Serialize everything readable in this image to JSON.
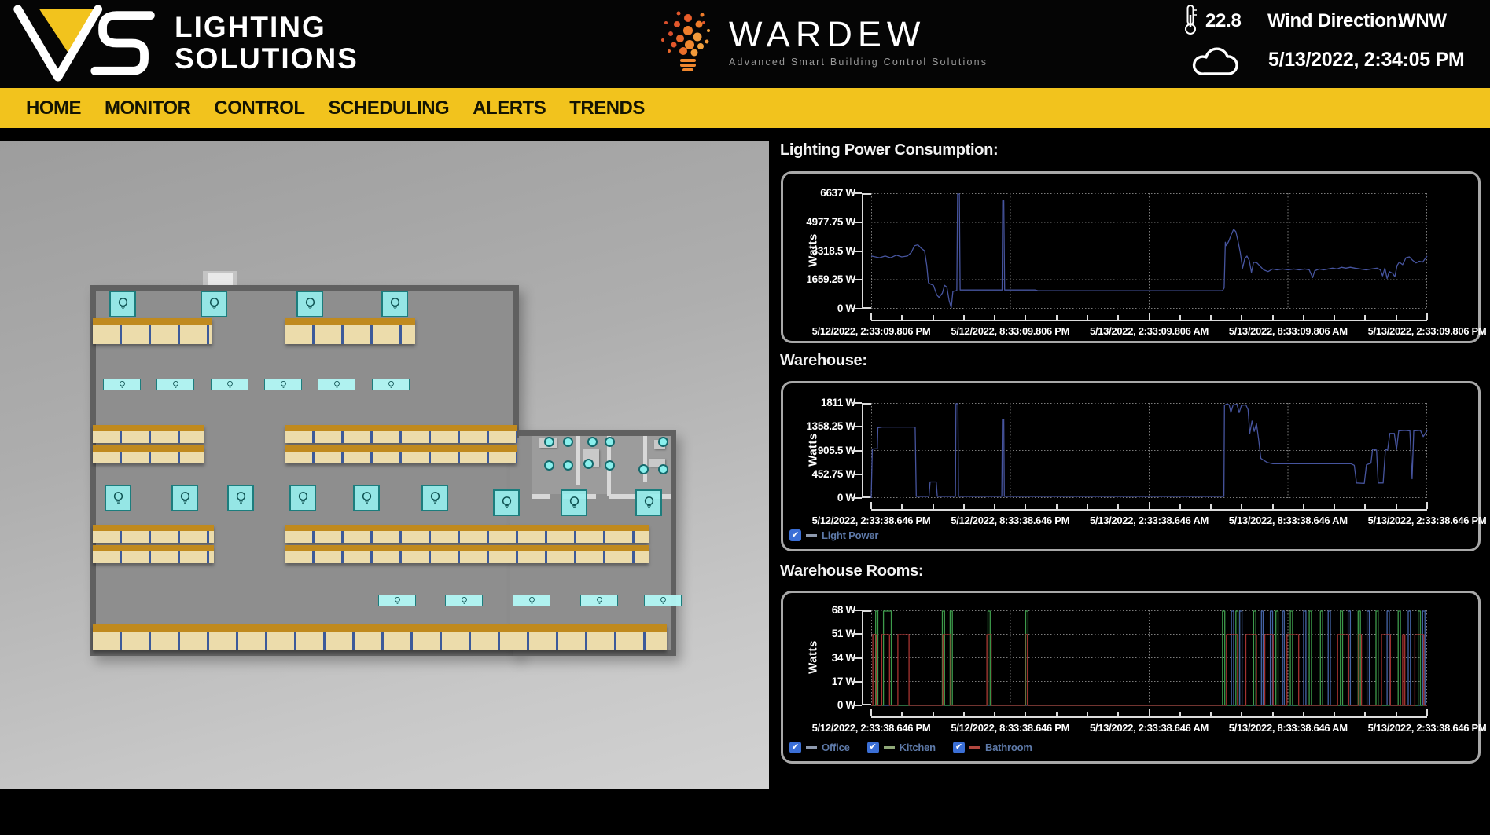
{
  "header": {
    "logo": {
      "line1": "LIGHTING",
      "line2": "SOLUTIONS"
    },
    "brand": {
      "name": "WARDEW",
      "tagline": "Advanced Smart Building Control Solutions"
    },
    "weather": {
      "temperature": "22.8",
      "wind_label": "Wind Direction:",
      "wind_value": "WNW",
      "datetime": "5/13/2022, 2:34:05 PM"
    }
  },
  "nav": {
    "items": [
      "HOME",
      "MONITOR",
      "CONTROL",
      "SCHEDULING",
      "ALERTS",
      "TRENDS"
    ]
  },
  "colors": {
    "nav_bg": "#f2c31d",
    "line_blue": "#46549e",
    "office": "#4565a8",
    "kitchen": "#3d9b4b",
    "bathroom": "#a53230",
    "checkbox": "#3b6fd6",
    "legend_text": "#5d79a8",
    "grid": "#7d7d7d",
    "axis": "#dcdcdc"
  },
  "chart_data": [
    {
      "type": "line",
      "title": "Lighting Power Consumption:",
      "y_label": "Watts",
      "y_max": 6637,
      "y_ticks": [
        "6637 W",
        "4977.75 W",
        "3318.5 W",
        "1659.25 W",
        "0 W"
      ],
      "x_ticks": [
        "5/12/2022, 2:33:09.806 PM",
        "5/12/2022, 8:33:09.806 PM",
        "5/13/2022, 2:33:09.806 AM",
        "5/13/2022, 8:33:09.806 AM",
        "5/13/2022, 2:33:09.806 PM"
      ],
      "grid": "dotted",
      "legend": [],
      "series": [
        {
          "name": "Lighting Power",
          "color": "#46549e",
          "points": [
            [
              0,
              3050
            ],
            [
              1.5,
              2950
            ],
            [
              2.5,
              3050
            ],
            [
              3.5,
              2950
            ],
            [
              4.5,
              3100
            ],
            [
              5.5,
              3000
            ],
            [
              6.5,
              3050
            ],
            [
              7.2,
              3250
            ],
            [
              7.8,
              3650
            ],
            [
              8.4,
              3700
            ],
            [
              9,
              3500
            ],
            [
              9.6,
              3350
            ],
            [
              10,
              2500
            ],
            [
              10.3,
              1500
            ],
            [
              10.8,
              1400
            ],
            [
              11.2,
              1350
            ],
            [
              11.8,
              800
            ],
            [
              12.2,
              650
            ],
            [
              12.8,
              900
            ],
            [
              13.2,
              1350
            ],
            [
              13.6,
              1250
            ],
            [
              14,
              500
            ],
            [
              14.4,
              50
            ],
            [
              14.7,
              1000
            ],
            [
              15.4,
              1050
            ],
            [
              15.55,
              6637
            ],
            [
              15.85,
              6637
            ],
            [
              16,
              1080
            ],
            [
              23.55,
              1080
            ],
            [
              23.65,
              6250
            ],
            [
              23.85,
              6250
            ],
            [
              24,
              1080
            ],
            [
              29.5,
              1080
            ],
            [
              30,
              1040
            ],
            [
              63.2,
              1040
            ],
            [
              63.5,
              1200
            ],
            [
              63.7,
              3850
            ],
            [
              63.9,
              3650
            ],
            [
              64.3,
              3900
            ],
            [
              64.8,
              4300
            ],
            [
              65.2,
              4600
            ],
            [
              65.6,
              4450
            ],
            [
              66,
              3900
            ],
            [
              66.4,
              3250
            ],
            [
              66.8,
              2350
            ],
            [
              67.2,
              2900
            ],
            [
              67.6,
              3050
            ],
            [
              68,
              2800
            ],
            [
              68.4,
              2100
            ],
            [
              68.8,
              2700
            ],
            [
              69.4,
              2650
            ],
            [
              70,
              2450
            ],
            [
              70.6,
              2250
            ],
            [
              71.4,
              2150
            ],
            [
              72.2,
              2300
            ],
            [
              73,
              2250
            ],
            [
              74,
              2300
            ],
            [
              75,
              2250
            ],
            [
              76,
              2300
            ],
            [
              77,
              2250
            ],
            [
              78,
              2300
            ],
            [
              78.8,
              2250
            ],
            [
              79.4,
              1800
            ],
            [
              79.8,
              2200
            ],
            [
              80.6,
              2300
            ],
            [
              81.4,
              2250
            ],
            [
              82.2,
              2300
            ],
            [
              83,
              2350
            ],
            [
              83.8,
              2300
            ],
            [
              84.6,
              2400
            ],
            [
              85.4,
              2350
            ],
            [
              86.2,
              2400
            ],
            [
              87,
              2350
            ],
            [
              88,
              2300
            ],
            [
              89,
              2250
            ],
            [
              90,
              2300
            ],
            [
              91,
              2350
            ],
            [
              91.6,
              2250
            ],
            [
              92,
              1900
            ],
            [
              92.4,
              2350
            ],
            [
              92.8,
              1750
            ],
            [
              93.2,
              2150
            ],
            [
              93.8,
              2050
            ],
            [
              94.2,
              1850
            ],
            [
              94.6,
              2500
            ],
            [
              95,
              2700
            ],
            [
              95.6,
              2550
            ],
            [
              96.2,
              2950
            ],
            [
              96.8,
              3000
            ],
            [
              97.4,
              2800
            ],
            [
              98,
              2650
            ],
            [
              98.6,
              2750
            ],
            [
              99.2,
              2700
            ],
            [
              100,
              3050
            ]
          ]
        }
      ]
    },
    {
      "type": "line",
      "title": "Warehouse:",
      "y_label": "Watts",
      "y_max": 1811,
      "y_ticks": [
        "1811 W",
        "1358.25 W",
        "905.5 W",
        "452.75 W",
        "0 W"
      ],
      "x_ticks": [
        "5/12/2022, 2:33:38.646 PM",
        "5/12/2022, 8:33:38.646 PM",
        "5/13/2022, 2:33:38.646 AM",
        "5/13/2022, 8:33:38.646 AM",
        "5/13/2022, 2:33:38.646 PM"
      ],
      "grid": "dotted",
      "legend": [
        {
          "label": "Light Power",
          "dash": "#8d99ad",
          "checked": true
        }
      ],
      "series": [
        {
          "name": "Light Power",
          "color": "#46549e",
          "points": [
            [
              0,
              0
            ],
            [
              0.2,
              940
            ],
            [
              1.1,
              950
            ],
            [
              1.2,
              1350
            ],
            [
              2,
              1365
            ],
            [
              7.9,
              1365
            ],
            [
              8.1,
              30
            ],
            [
              10.4,
              30
            ],
            [
              10.6,
              310
            ],
            [
              11.7,
              310
            ],
            [
              11.9,
              30
            ],
            [
              15.15,
              30
            ],
            [
              15.25,
              1811
            ],
            [
              15.6,
              1811
            ],
            [
              15.7,
              30
            ],
            [
              23.5,
              30
            ],
            [
              23.6,
              1510
            ],
            [
              23.85,
              1510
            ],
            [
              23.95,
              30
            ],
            [
              63.45,
              30
            ],
            [
              63.55,
              1780
            ],
            [
              64,
              1811
            ],
            [
              64.4,
              1790
            ],
            [
              64.7,
              1640
            ],
            [
              65.1,
              1790
            ],
            [
              65.8,
              1800
            ],
            [
              66.2,
              1640
            ],
            [
              66.6,
              1780
            ],
            [
              67.4,
              1790
            ],
            [
              67.8,
              1700
            ],
            [
              68.1,
              1240
            ],
            [
              68.5,
              1480
            ],
            [
              68.9,
              1280
            ],
            [
              69.3,
              1430
            ],
            [
              69.7,
              1120
            ],
            [
              70.1,
              760
            ],
            [
              70.7,
              720
            ],
            [
              71.3,
              680
            ],
            [
              72.2,
              660
            ],
            [
              86.3,
              660
            ],
            [
              86.9,
              630
            ],
            [
              87.3,
              290
            ],
            [
              88.7,
              280
            ],
            [
              89.1,
              640
            ],
            [
              89.9,
              670
            ],
            [
              90.2,
              940
            ],
            [
              90.9,
              920
            ],
            [
              91.2,
              290
            ],
            [
              92.1,
              290
            ],
            [
              92.5,
              930
            ],
            [
              92.9,
              920
            ],
            [
              93.3,
              1240
            ],
            [
              94.1,
              1240
            ],
            [
              94.5,
              930
            ],
            [
              94.9,
              1290
            ],
            [
              96,
              1300
            ],
            [
              96.9,
              1290
            ],
            [
              97.3,
              370
            ],
            [
              97.6,
              1290
            ],
            [
              98.8,
              1300
            ],
            [
              99.3,
              1180
            ],
            [
              100,
              1300
            ]
          ]
        }
      ]
    },
    {
      "type": "line",
      "title": "Warehouse Rooms:",
      "y_label": "Watts",
      "y_max": 68,
      "y_ticks": [
        "68 W",
        "51 W",
        "34 W",
        "17 W",
        "0 W"
      ],
      "x_ticks": [
        "5/12/2022, 2:33:38.646 PM",
        "5/12/2022, 8:33:38.646 PM",
        "5/13/2022, 2:33:38.646 AM",
        "5/13/2022, 8:33:38.646 AM",
        "5/13/2022, 2:33:38.646 PM"
      ],
      "grid": "dotted",
      "legend": [
        {
          "label": "Office",
          "dash": "#8d99ad",
          "checked": true
        },
        {
          "label": "Kitchen",
          "dash": "#8fa878",
          "checked": true
        },
        {
          "label": "Bathroom",
          "dash": "#b2473f",
          "checked": true
        }
      ],
      "series": [
        {
          "name": "Office",
          "color": "#4565a8",
          "amplitude": 68,
          "pulses": [
            [
              64.8,
              65.2
            ],
            [
              66.3,
              66.7
            ],
            [
              70.2,
              70.5
            ],
            [
              71.8,
              72.2
            ],
            [
              74.0,
              74.3
            ],
            [
              77.8,
              78.2
            ],
            [
              82.2,
              82.6
            ],
            [
              85.8,
              86.2
            ],
            [
              89.2,
              89.6
            ],
            [
              92.8,
              93.2
            ],
            [
              96.6,
              97.0
            ],
            [
              99.2,
              99.6
            ]
          ]
        },
        {
          "name": "Kitchen",
          "color": "#3d9b4b",
          "amplitude": 68,
          "pulses": [
            [
              0.8,
              1.2
            ],
            [
              2.2,
              3.6
            ],
            [
              12.8,
              13.2
            ],
            [
              14.2,
              14.6
            ],
            [
              21.0,
              21.4
            ],
            [
              27.8,
              28.2
            ],
            [
              63.2,
              63.6
            ],
            [
              65.6,
              66.0
            ],
            [
              68.8,
              69.2
            ],
            [
              72.8,
              73.2
            ],
            [
              75.4,
              75.8
            ],
            [
              78.8,
              79.2
            ],
            [
              80.8,
              81.2
            ],
            [
              84.4,
              84.8
            ],
            [
              87.6,
              88.0
            ],
            [
              90.8,
              91.2
            ],
            [
              94.8,
              95.2
            ],
            [
              98.4,
              98.8
            ]
          ]
        },
        {
          "name": "Bathroom",
          "color": "#a53230",
          "amplitude": 51,
          "pulses": [
            [
              0.3,
              0.9
            ],
            [
              1.9,
              3.3
            ],
            [
              4.8,
              6.8
            ],
            [
              12.9,
              14.3
            ],
            [
              20.8,
              21.6
            ],
            [
              27.7,
              28.1
            ],
            [
              63.9,
              65.9
            ],
            [
              67.4,
              69.3
            ],
            [
              70.8,
              72.3
            ],
            [
              74.8,
              76.9
            ],
            [
              83.9,
              85.9
            ],
            [
              87.7,
              88.2
            ],
            [
              91.8,
              93.4
            ],
            [
              95.6,
              96.0
            ],
            [
              97.8,
              99.4
            ]
          ]
        }
      ]
    }
  ]
}
